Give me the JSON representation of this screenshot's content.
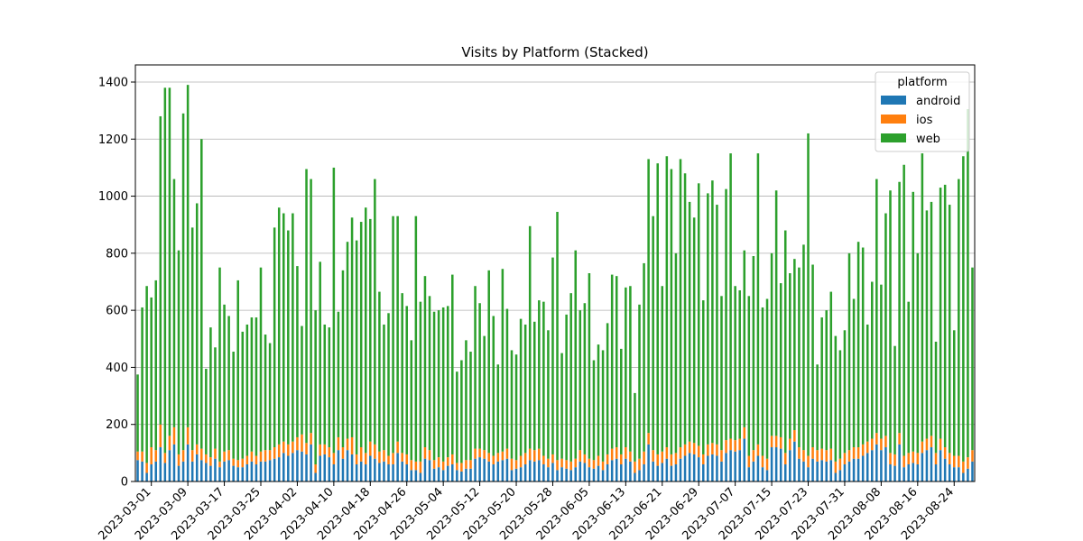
{
  "chart_data": {
    "type": "bar",
    "stacked": true,
    "title": "Visits by Platform (Stacked)",
    "xlabel": "",
    "ylabel": "",
    "ylim": [
      0,
      1460
    ],
    "yticks": [
      0,
      200,
      400,
      600,
      800,
      1000,
      1200,
      1400
    ],
    "grid": "y",
    "legend": {
      "title": "platform",
      "position": "top-right"
    },
    "start_date": "2023-02-26",
    "x_tick_labels": [
      "2023-03-01",
      "2023-03-09",
      "2023-03-17",
      "2023-03-25",
      "2023-04-02",
      "2023-04-10",
      "2023-04-18",
      "2023-04-26",
      "2023-05-04",
      "2023-05-12",
      "2023-05-20",
      "2023-05-28",
      "2023-06-05",
      "2023-06-13",
      "2023-06-21",
      "2023-06-29",
      "2023-07-07",
      "2023-07-15",
      "2023-07-23",
      "2023-07-31",
      "2023-08-08",
      "2023-08-16",
      "2023-08-24"
    ],
    "series": [
      {
        "name": "android",
        "color": "#1f77b4",
        "values": [
          75,
          70,
          30,
          60,
          70,
          120,
          65,
          110,
          130,
          55,
          70,
          130,
          70,
          95,
          75,
          65,
          55,
          80,
          50,
          70,
          75,
          55,
          50,
          50,
          60,
          70,
          60,
          70,
          70,
          75,
          80,
          85,
          100,
          90,
          100,
          110,
          105,
          95,
          130,
          30,
          90,
          95,
          85,
          60,
          110,
          80,
          110,
          95,
          60,
          70,
          60,
          90,
          80,
          65,
          70,
          60,
          60,
          100,
          70,
          60,
          40,
          40,
          30,
          80,
          75,
          45,
          50,
          40,
          55,
          60,
          40,
          35,
          45,
          45,
          80,
          85,
          80,
          70,
          60,
          70,
          75,
          80,
          40,
          45,
          50,
          60,
          75,
          70,
          75,
          60,
          50,
          65,
          40,
          50,
          45,
          40,
          50,
          70,
          65,
          50,
          45,
          55,
          40,
          60,
          75,
          80,
          60,
          80,
          70,
          30,
          40,
          60,
          130,
          70,
          55,
          65,
          80,
          55,
          60,
          80,
          90,
          100,
          95,
          85,
          60,
          90,
          95,
          90,
          70,
          100,
          110,
          105,
          110,
          150,
          50,
          70,
          90,
          50,
          40,
          120,
          120,
          115,
          60,
          110,
          140,
          80,
          70,
          50,
          80,
          70,
          75,
          70,
          75,
          30,
          40,
          60,
          70,
          80,
          80,
          90,
          100,
          110,
          130,
          110,
          120,
          60,
          55,
          130,
          50,
          60,
          65,
          60,
          100,
          110,
          120,
          60,
          110,
          80,
          60,
          50,
          50,
          30,
          45,
          70
        ]
      },
      {
        "name": "ios",
        "color": "#ff7f0e",
        "values": [
          30,
          35,
          35,
          60,
          40,
          80,
          35,
          50,
          60,
          40,
          40,
          60,
          40,
          35,
          40,
          30,
          30,
          35,
          20,
          35,
          35,
          25,
          25,
          30,
          30,
          35,
          30,
          35,
          40,
          35,
          40,
          45,
          40,
          40,
          40,
          45,
          60,
          40,
          40,
          30,
          40,
          35,
          35,
          40,
          45,
          40,
          40,
          60,
          35,
          50,
          40,
          50,
          50,
          40,
          40,
          30,
          40,
          40,
          30,
          35,
          35,
          30,
          40,
          40,
          35,
          30,
          35,
          30,
          30,
          35,
          25,
          30,
          30,
          30,
          35,
          30,
          30,
          30,
          30,
          30,
          30,
          35,
          40,
          30,
          40,
          40,
          40,
          40,
          40,
          30,
          30,
          30,
          35,
          30,
          30,
          30,
          30,
          40,
          30,
          30,
          30,
          35,
          30,
          35,
          40,
          40,
          35,
          40,
          35,
          40,
          40,
          45,
          40,
          40,
          40,
          40,
          40,
          40,
          40,
          40,
          40,
          40,
          40,
          40,
          35,
          40,
          40,
          40,
          40,
          45,
          40,
          40,
          40,
          40,
          40,
          40,
          40,
          40,
          40,
          40,
          40,
          40,
          40,
          40,
          40,
          40,
          40,
          40,
          40,
          40,
          40,
          40,
          40,
          40,
          40,
          40,
          40,
          40,
          40,
          40,
          40,
          40,
          40,
          40,
          40,
          40,
          40,
          40,
          40,
          40,
          40,
          40,
          40,
          40,
          40,
          40,
          40,
          40,
          40,
          40,
          40,
          40,
          40,
          40
        ]
      },
      {
        "name": "web",
        "color": "#2ca02c",
        "values": [
          270,
          505,
          620,
          525,
          595,
          1080,
          1280,
          1220,
          870,
          715,
          1180,
          1200,
          780,
          845,
          1085,
          300,
          455,
          355,
          680,
          515,
          470,
          375,
          630,
          445,
          460,
          470,
          485,
          645,
          405,
          375,
          770,
          830,
          800,
          750,
          800,
          600,
          380,
          960,
          890,
          540,
          640,
          420,
          420,
          1000,
          440,
          620,
          690,
          770,
          750,
          790,
          860,
          780,
          930,
          560,
          440,
          500,
          830,
          790,
          560,
          520,
          420,
          860,
          560,
          600,
          540,
          520,
          515,
          540,
          530,
          630,
          320,
          360,
          420,
          380,
          570,
          510,
          400,
          640,
          490,
          310,
          640,
          490,
          380,
          370,
          480,
          450,
          780,
          450,
          520,
          540,
          450,
          690,
          870,
          370,
          510,
          590,
          730,
          490,
          530,
          650,
          350,
          390,
          390,
          460,
          610,
          600,
          370,
          560,
          580,
          240,
          540,
          660,
          960,
          820,
          1020,
          580,
          1020,
          1000,
          700,
          1010,
          950,
          840,
          790,
          920,
          540,
          880,
          920,
          840,
          540,
          880,
          1000,
          540,
          520,
          620,
          560,
          680,
          1020,
          520,
          560,
          640,
          860,
          540,
          780,
          580,
          600,
          630,
          720,
          1130,
          640,
          300,
          460,
          490,
          550,
          440,
          380,
          430,
          690,
          520,
          720,
          690,
          410,
          550,
          890,
          540,
          780,
          920,
          380,
          880,
          1020,
          530,
          910,
          700,
          1010,
          800,
          820,
          390,
          880,
          920,
          870,
          440,
          970,
          1070,
          1220,
          640
        ]
      }
    ]
  }
}
